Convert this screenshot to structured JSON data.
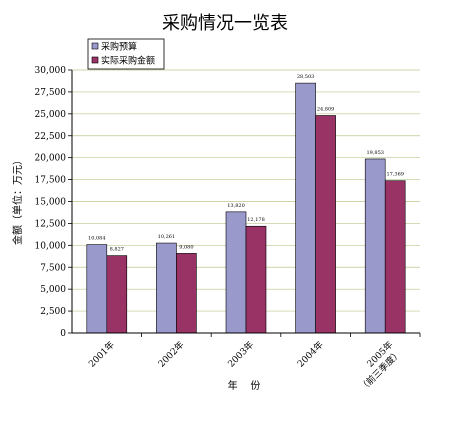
{
  "chart_data": {
    "type": "bar",
    "title": "采购情况一览表",
    "xlabel": "年    份",
    "ylabel": "金额（单位：万元）",
    "ylim": [
      0,
      30000
    ],
    "yticks": [
      "0",
      "2,500",
      "5,000",
      "7,500",
      "10,000",
      "12,500",
      "15,000",
      "17,500",
      "20,000",
      "22,500",
      "25,000",
      "27,500",
      "30,000"
    ],
    "categories": [
      [
        "2001年"
      ],
      [
        "2002年"
      ],
      [
        "2003年"
      ],
      [
        "2004年"
      ],
      [
        "2005年",
        "（前三季度）"
      ]
    ],
    "series": [
      {
        "name": "采购预算",
        "color": "#9999cc",
        "values": [
          10084,
          10261,
          13820,
          28503,
          19853
        ],
        "labels": [
          "10,084",
          "10,261",
          "13,820",
          "28,503",
          "19,853"
        ]
      },
      {
        "name": "实际采购金额",
        "color": "#993366",
        "values": [
          8827,
          9080,
          12178,
          24809,
          17369
        ],
        "labels": [
          "8,827",
          "9,080",
          "12,178",
          "24,809",
          "17,369"
        ]
      }
    ],
    "grid": true,
    "legend": "top-left"
  }
}
